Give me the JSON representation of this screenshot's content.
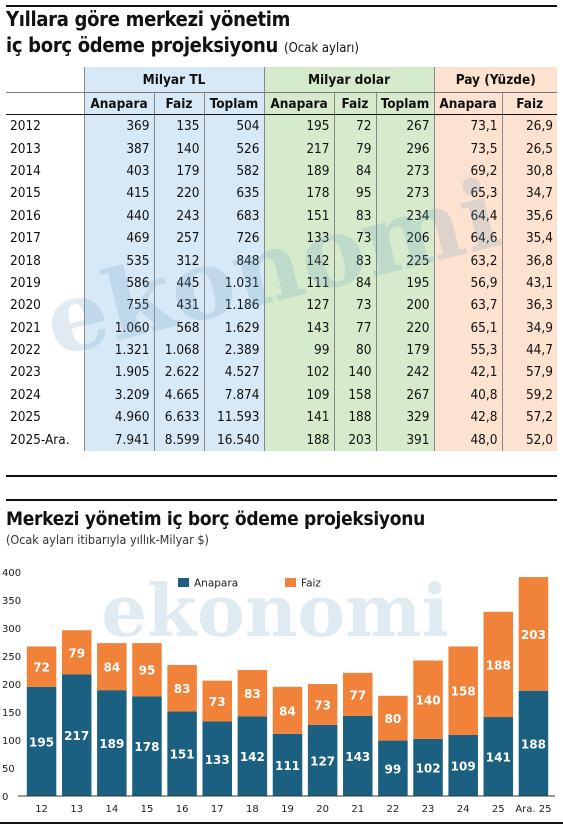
{
  "table": {
    "title_line1": "Yıllara göre merkezi yönetim",
    "title_line2": "iç borç ödeme projeksiyonu",
    "title_note": "(Ocak ayları)",
    "groups": [
      "Milyar TL",
      "Milyar dolar",
      "Pay (Yüzde)"
    ],
    "columns": [
      "Anapara",
      "Faiz",
      "Toplam",
      "Anapara",
      "Faiz",
      "Toplam",
      "Anapara",
      "Faiz"
    ],
    "rows": [
      {
        "year": "2012",
        "cells": [
          "369",
          "135",
          "504",
          "195",
          "72",
          "267",
          "73,1",
          "26,9"
        ]
      },
      {
        "year": "2013",
        "cells": [
          "387",
          "140",
          "526",
          "217",
          "79",
          "296",
          "73,5",
          "26,5"
        ]
      },
      {
        "year": "2014",
        "cells": [
          "403",
          "179",
          "582",
          "189",
          "84",
          "273",
          "69,2",
          "30,8"
        ]
      },
      {
        "year": "2015",
        "cells": [
          "415",
          "220",
          "635",
          "178",
          "95",
          "273",
          "65,3",
          "34,7"
        ]
      },
      {
        "year": "2016",
        "cells": [
          "440",
          "243",
          "683",
          "151",
          "83",
          "234",
          "64,4",
          "35,6"
        ]
      },
      {
        "year": "2017",
        "cells": [
          "469",
          "257",
          "726",
          "133",
          "73",
          "206",
          "64,6",
          "35,4"
        ]
      },
      {
        "year": "2018",
        "cells": [
          "535",
          "312",
          "848",
          "142",
          "83",
          "225",
          "63,2",
          "36,8"
        ]
      },
      {
        "year": "2019",
        "cells": [
          "586",
          "445",
          "1.031",
          "111",
          "84",
          "195",
          "56,9",
          "43,1"
        ]
      },
      {
        "year": "2020",
        "cells": [
          "755",
          "431",
          "1.186",
          "127",
          "73",
          "200",
          "63,7",
          "36,3"
        ]
      },
      {
        "year": "2021",
        "cells": [
          "1.060",
          "568",
          "1.629",
          "143",
          "77",
          "220",
          "65,1",
          "34,9"
        ]
      },
      {
        "year": "2022",
        "cells": [
          "1.321",
          "1.068",
          "2.389",
          "99",
          "80",
          "179",
          "55,3",
          "44,7"
        ]
      },
      {
        "year": "2023",
        "cells": [
          "1.905",
          "2.622",
          "4.527",
          "102",
          "140",
          "242",
          "42,1",
          "57,9"
        ]
      },
      {
        "year": "2024",
        "cells": [
          "3.209",
          "4.665",
          "7.874",
          "109",
          "158",
          "267",
          "40,8",
          "59,2"
        ]
      },
      {
        "year": "2025",
        "cells": [
          "4.960",
          "6.633",
          "11.593",
          "141",
          "188",
          "329",
          "42,8",
          "57,2"
        ]
      },
      {
        "year": "2025-Ara.",
        "cells": [
          "7.941",
          "8.599",
          "16.540",
          "188",
          "203",
          "391",
          "48,0",
          "52,0"
        ]
      }
    ]
  },
  "watermark": "ekonomi",
  "colors": {
    "anapara": "#1b6080",
    "faiz": "#f0823a",
    "tl_bg": "#d7e8f6",
    "usd_bg": "#d5ebcc",
    "pay_bg": "#fde2cf"
  },
  "chart_data": {
    "type": "bar",
    "stacked": true,
    "title": "Merkezi yönetim iç borç ödeme projeksiyonu",
    "subtitle": "(Ocak ayları itibarıyla yıllık-Milyar $)",
    "categories": [
      "12",
      "13",
      "14",
      "15",
      "16",
      "17",
      "18",
      "19",
      "20",
      "21",
      "22",
      "23",
      "24",
      "25",
      "Ara. 25"
    ],
    "series": [
      {
        "name": "Anapara",
        "values": [
          195,
          217,
          189,
          178,
          151,
          133,
          142,
          111,
          127,
          143,
          99,
          102,
          109,
          141,
          188
        ]
      },
      {
        "name": "Faiz",
        "values": [
          72,
          79,
          84,
          95,
          83,
          73,
          83,
          84,
          73,
          77,
          80,
          140,
          158,
          188,
          203
        ]
      }
    ],
    "ylim": [
      0,
      400
    ],
    "yticks": [
      "0",
      "50",
      "100",
      "150",
      "200",
      "250",
      "300",
      "350",
      "400"
    ],
    "legend": "top-center",
    "grid": false
  }
}
